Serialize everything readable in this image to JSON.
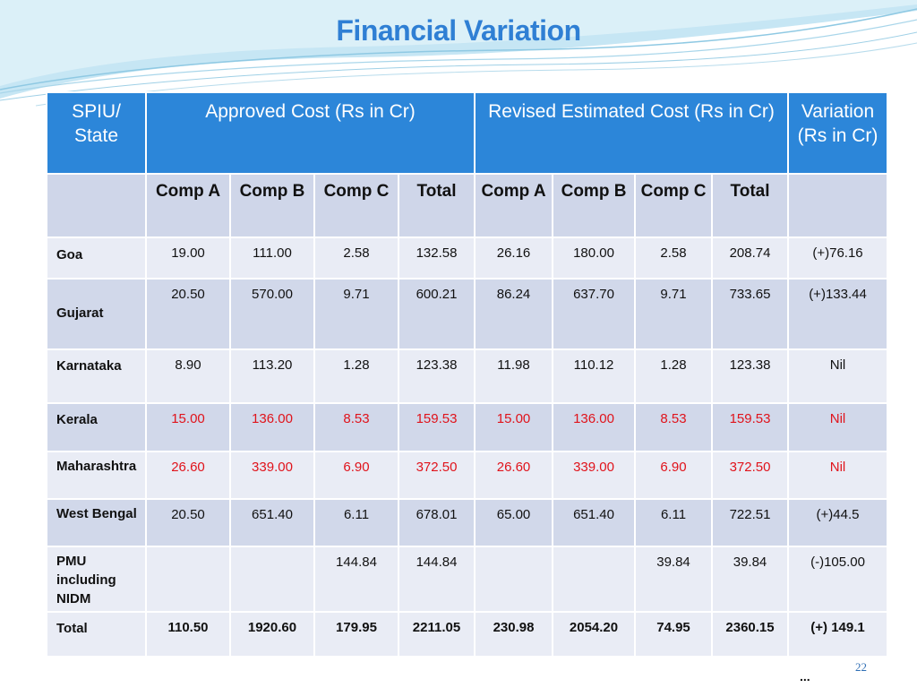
{
  "title": "Financial Variation",
  "header": {
    "state": "SPIU/ State",
    "approved": "Approved Cost (Rs in Cr)",
    "revised": "Revised Estimated Cost (Rs in Cr)",
    "variation": "Variation (Rs in Cr)"
  },
  "subheader": [
    "Comp A",
    "Comp B",
    "Comp C",
    "Total",
    "Comp A",
    "Comp B",
    "Comp C",
    "Total"
  ],
  "rows": [
    {
      "state": "Goa",
      "values": [
        "19.00",
        "111.00",
        "2.58",
        "132.58",
        "26.16",
        "180.00",
        "2.58",
        "208.74",
        "(+)76.16"
      ]
    },
    {
      "state": "Gujarat",
      "values": [
        "20.50",
        "570.00",
        "9.71",
        "600.21",
        "86.24",
        "637.70",
        "9.71",
        "733.65",
        "(+)133.44"
      ]
    },
    {
      "state": "Karnataka",
      "values": [
        "8.90",
        "113.20",
        "1.28",
        "123.38",
        "11.98",
        "110.12",
        "1.28",
        "123.38",
        "Nil"
      ]
    },
    {
      "state": "Kerala",
      "values": [
        "15.00",
        "136.00",
        "8.53",
        "159.53",
        "15.00",
        "136.00",
        "8.53",
        "159.53",
        "Nil"
      ]
    },
    {
      "state": "Maharashtra",
      "values": [
        "26.60",
        "339.00",
        "6.90",
        "372.50",
        "26.60",
        "339.00",
        "6.90",
        "372.50",
        "Nil"
      ]
    },
    {
      "state": "West Bengal",
      "values": [
        "20.50",
        "651.40",
        "6.11",
        "678.01",
        "65.00",
        "651.40",
        "6.11",
        "722.51",
        "(+)44.5"
      ]
    },
    {
      "state": "PMU including NIDM",
      "values": [
        "",
        "",
        "144.84",
        "144.84",
        "",
        "",
        "39.84",
        "39.84",
        "(-)105.00"
      ]
    }
  ],
  "total": {
    "label": "Total",
    "values": [
      "110.50",
      "1920.60",
      "179.95",
      "2211.05",
      "230.98",
      "2054.20",
      "74.95",
      "2360.15",
      "(+) 149.1"
    ]
  },
  "colors": {
    "header_bg": "#2c86d9",
    "title": "#2f7fd4",
    "highlight": "#e0131b"
  },
  "footer": {
    "page": "22",
    "dots": "..."
  }
}
